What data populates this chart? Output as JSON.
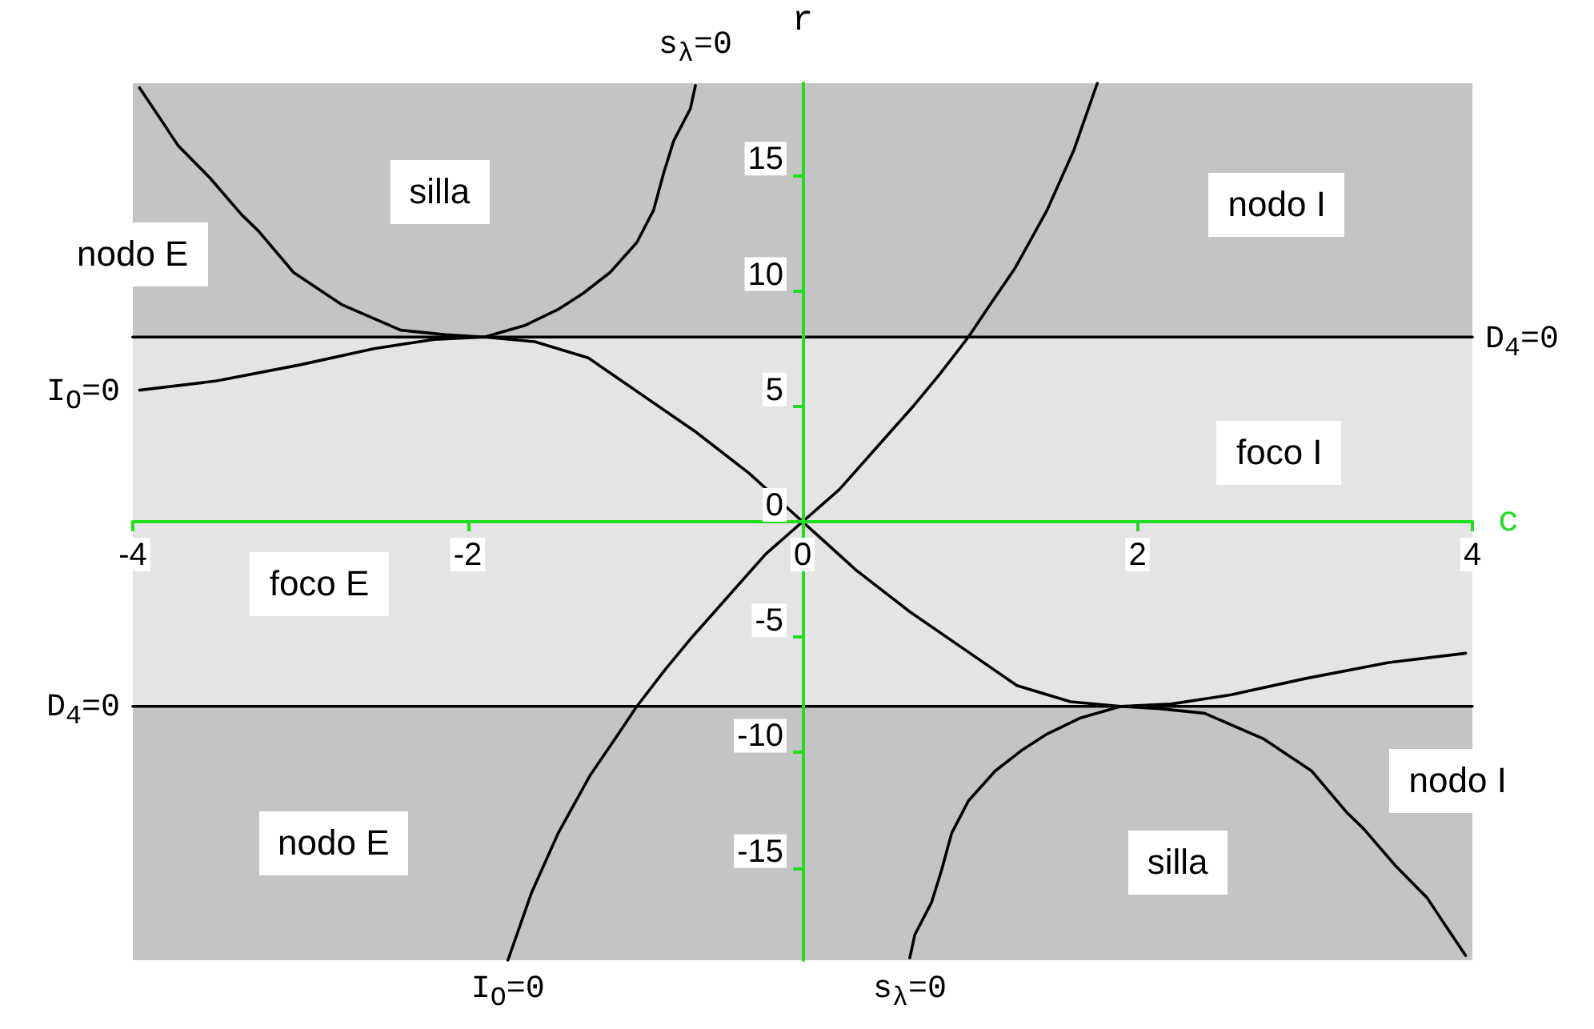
{
  "chart_data": {
    "type": "line",
    "xlabel": "c",
    "ylabel": "r",
    "xlim": [
      -4,
      4
    ],
    "xticks": [
      -4,
      -2,
      0,
      2,
      4
    ],
    "ylim": [
      -19,
      19
    ],
    "yticks": [
      -15,
      -10,
      -5,
      0,
      5,
      10,
      15
    ],
    "series": [
      {
        "name": "s$_{λ}$=0",
        "color": "#000000",
        "x": [
          -3.96,
          -3.83,
          -3.73,
          -3.54,
          -3.35,
          -3.25,
          -3.04,
          -2.75,
          -2.4,
          -2.13,
          -1.9,
          -1.66,
          -1.46,
          -1.31,
          -1.15,
          -0.99,
          -0.89,
          -0.83,
          -0.77,
          -0.67,
          -0.64
        ],
        "values": [
          18.8,
          17.4,
          16.3,
          14.9,
          13.3,
          12.6,
          10.8,
          9.4,
          8.3,
          8.1,
          8.0,
          8.5,
          9.2,
          9.9,
          10.8,
          12.1,
          13.5,
          15.1,
          16.5,
          17.9,
          18.9
        ]
      },
      {
        "name": "s$_{λ}$=0",
        "color": "#000000",
        "x": [
          0.64,
          0.67,
          0.77,
          0.83,
          0.89,
          0.99,
          1.15,
          1.31,
          1.46,
          1.66,
          1.9,
          2.13,
          2.4,
          2.75,
          3.04,
          3.25,
          3.35,
          3.54,
          3.73,
          3.83,
          3.96
        ],
        "values": [
          -18.9,
          -17.9,
          -16.5,
          -15.1,
          -13.5,
          -12.1,
          -10.8,
          -9.9,
          -9.2,
          -8.5,
          -8.0,
          -8.1,
          -8.3,
          -9.4,
          -10.8,
          -12.6,
          -13.3,
          -14.9,
          -16.3,
          -17.4,
          -18.8
        ]
      },
      {
        "name": "I$_{O}$=0",
        "color": "#000000",
        "x": [
          -3.96,
          -3.5,
          -3,
          -2.56,
          -2.2,
          -1.9,
          -1.6,
          -1.28,
          -0.96,
          -0.64,
          -0.32,
          0,
          0.32,
          0.64,
          0.96,
          1.28,
          1.6,
          1.9,
          2.2,
          2.56,
          3,
          3.5,
          3.96
        ],
        "values": [
          5.7,
          6.1,
          6.8,
          7.5,
          7.9,
          8.0,
          7.8,
          7.1,
          5.5,
          3.9,
          2.1,
          0,
          -2.1,
          -3.9,
          -5.5,
          -7.1,
          -7.8,
          -8.0,
          -7.9,
          -7.5,
          -6.8,
          -6.1,
          -5.7
        ]
      },
      {
        "name": "I$_{O}$=0",
        "color": "#000000",
        "x": [
          -1.76,
          -1.62,
          -1.46,
          -1.27,
          -1.11,
          -0.99,
          -0.82,
          -0.66,
          -0.44,
          -0.22,
          0,
          0.22,
          0.44,
          0.66,
          0.82,
          0.99,
          1.11,
          1.27,
          1.46,
          1.62,
          1.76
        ],
        "values": [
          -19,
          -16.1,
          -13.5,
          -11,
          -9.3,
          -8,
          -6.4,
          -5,
          -3.2,
          -1.4,
          0,
          1.4,
          3.2,
          5,
          6.4,
          8,
          9.3,
          11,
          13.5,
          16.1,
          19
        ]
      },
      {
        "name": "D$_{4}$=0",
        "color": "#000000",
        "x": [
          -4,
          4
        ],
        "values": [
          8,
          8
        ]
      },
      {
        "name": "D$_{4}$=0",
        "color": "#000000",
        "x": [
          -4,
          4
        ],
        "values": [
          -8,
          -8
        ]
      }
    ],
    "bands": [
      {
        "axis": "y",
        "from": 8,
        "to": 19,
        "color": "#c4c4c4"
      },
      {
        "axis": "y",
        "from": -8,
        "to": 8,
        "color": "#e4e4e4"
      },
      {
        "axis": "y",
        "from": -19,
        "to": -8,
        "color": "#c4c4c4"
      }
    ],
    "annotations": [
      "silla",
      "nodo E",
      "nodo I",
      "foco I",
      "foco E",
      "nodo E",
      "silla",
      "nodo I"
    ]
  }
}
